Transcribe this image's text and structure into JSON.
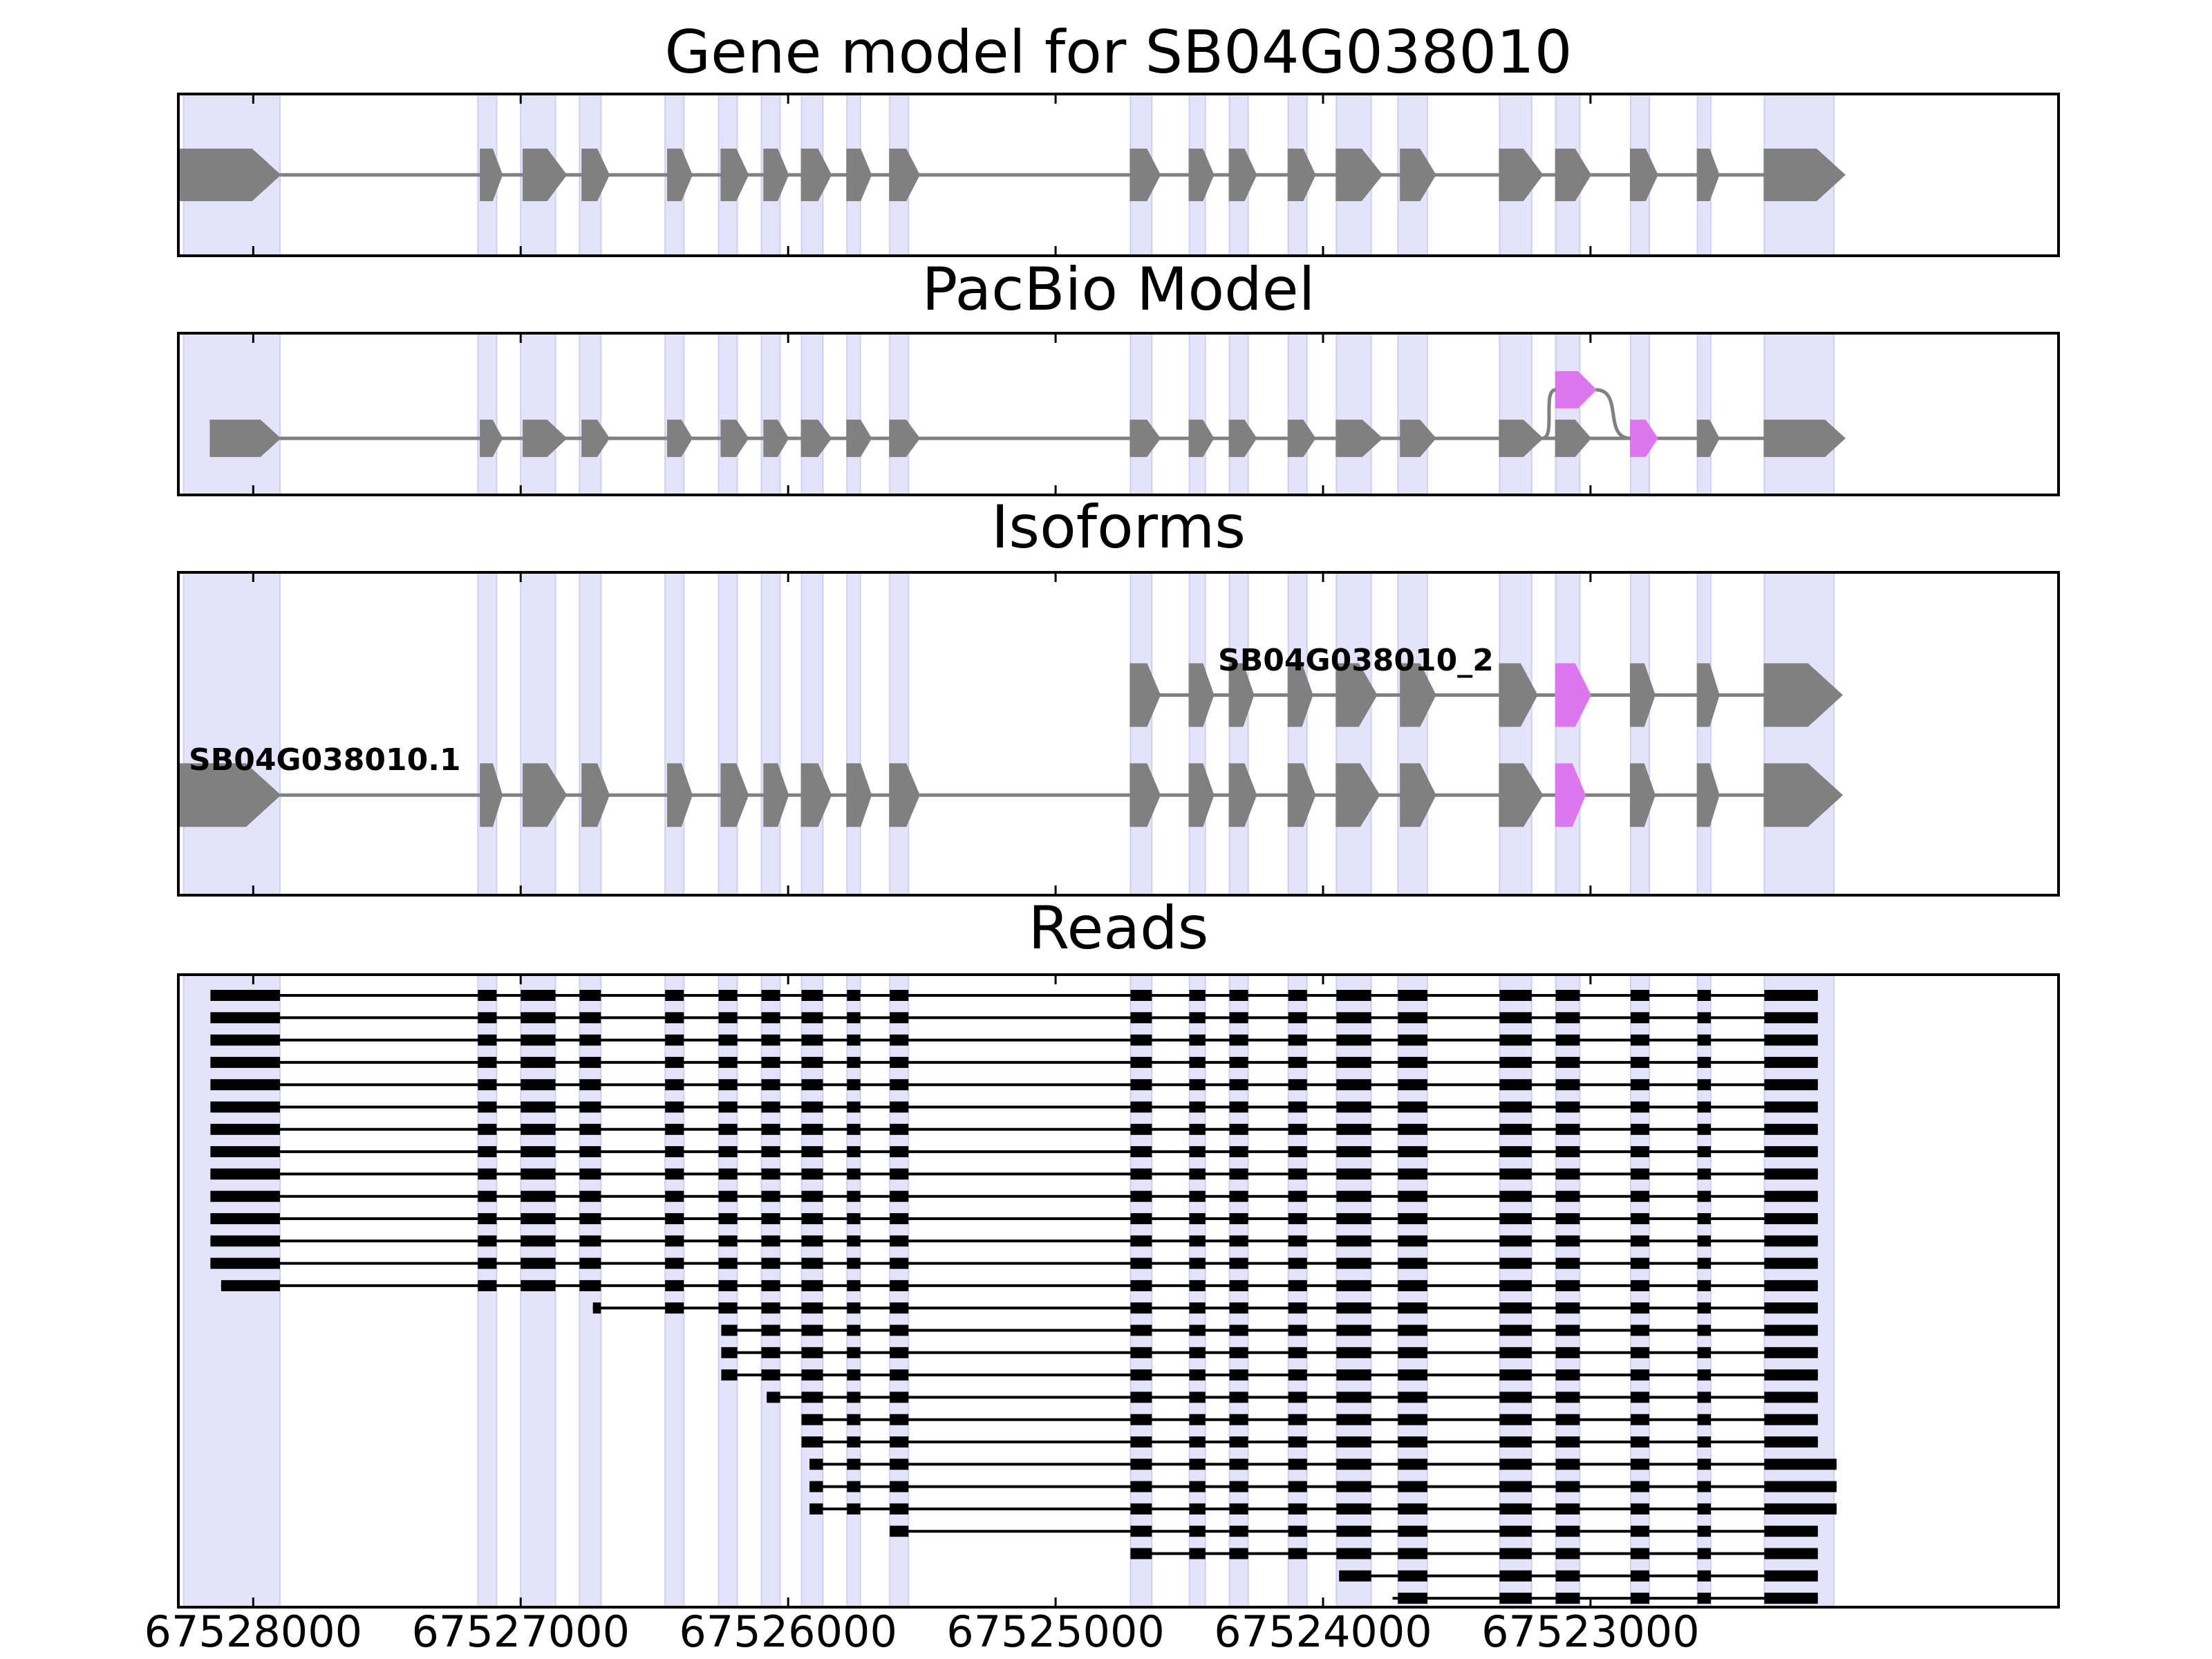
{
  "chart_data": {
    "type": "gene-track",
    "x_axis": {
      "reversed": true,
      "range": [
        67528280,
        67521250
      ],
      "ticks": [
        67528000,
        67527000,
        67526000,
        67525000,
        67524000,
        67523000
      ],
      "tick_labels": [
        "67528000",
        "67527000",
        "67526000",
        "67525000",
        "67524000",
        "67523000"
      ]
    },
    "exon_regions": [
      [
        67528260,
        67527900
      ],
      [
        67527160,
        67527090
      ],
      [
        67527000,
        67526870
      ],
      [
        67526780,
        67526700
      ],
      [
        67526460,
        67526390
      ],
      [
        67526260,
        67526190
      ],
      [
        67526100,
        67526030
      ],
      [
        67525950,
        67525870
      ],
      [
        67525780,
        67525730
      ],
      [
        67525620,
        67525550
      ],
      [
        67524720,
        67524640
      ],
      [
        67524500,
        67524440
      ],
      [
        67524350,
        67524280
      ],
      [
        67524130,
        67524060
      ],
      [
        67523950,
        67523820
      ],
      [
        67523720,
        67523610
      ],
      [
        67523340,
        67523220
      ],
      [
        67523130,
        67523040
      ],
      [
        67522850,
        67522780
      ],
      [
        67522600,
        67522550
      ],
      [
        67522350,
        67522090
      ]
    ],
    "panels": [
      {
        "title": "Gene model for SB04G038010",
        "tracks": [
          {
            "label": "",
            "row": 0.5,
            "exons": [
              [
                67528280,
                67527900
              ],
              [
                67527150,
                67527070
              ],
              [
                67526990,
                67526830
              ],
              [
                67526770,
                67526670
              ],
              [
                67526450,
                67526360
              ],
              [
                67526250,
                67526150
              ],
              [
                67526090,
                67526000
              ],
              [
                67525950,
                67525840
              ],
              [
                67525780,
                67525690
              ],
              [
                67525620,
                67525510
              ],
              [
                67524720,
                67524610
              ],
              [
                67524500,
                67524410
              ],
              [
                67524350,
                67524250
              ],
              [
                67524130,
                67524030
              ],
              [
                67523950,
                67523780
              ],
              [
                67523710,
                67523580
              ],
              [
                67523340,
                67523180
              ],
              [
                67523130,
                67523000
              ],
              [
                67522850,
                67522750
              ],
              [
                67522600,
                67522520
              ],
              [
                67522350,
                67522050
              ]
            ],
            "highlight": []
          }
        ]
      },
      {
        "title": "PacBio Model",
        "tracks": [
          {
            "label": "",
            "row": 0.35,
            "exons": [
              [
                67528160,
                67527900
              ],
              [
                67527150,
                67527070
              ],
              [
                67526990,
                67526830
              ],
              [
                67526770,
                67526670
              ],
              [
                67526450,
                67526360
              ],
              [
                67526250,
                67526150
              ],
              [
                67526090,
                67526000
              ],
              [
                67525950,
                67525840
              ],
              [
                67525780,
                67525690
              ],
              [
                67525620,
                67525510
              ],
              [
                67524720,
                67524610
              ],
              [
                67524500,
                67524410
              ],
              [
                67524350,
                67524250
              ],
              [
                67524130,
                67524030
              ],
              [
                67523950,
                67523780
              ],
              [
                67523710,
                67523580
              ],
              [
                67523340,
                67523180
              ],
              [
                67523130,
                67523000
              ],
              [
                67522850,
                67522750
              ],
              [
                67522600,
                67522520
              ],
              [
                67522350,
                67522050
              ]
            ],
            "highlight": [
              18
            ]
          },
          {
            "label": "",
            "row": 0.65,
            "exons": [
              [
                67523130,
                67522980
              ]
            ],
            "highlight": [
              0
            ],
            "arc_from": 67523180,
            "arc_to": 67522850
          }
        ]
      },
      {
        "title": "Isoforms",
        "tracks": [
          {
            "label": "SB04G038010_2",
            "row": 0.62,
            "exons": [
              [
                67524720,
                67524610
              ],
              [
                67524500,
                67524410
              ],
              [
                67524350,
                67524260
              ],
              [
                67524130,
                67524040
              ],
              [
                67523950,
                67523800
              ],
              [
                67523710,
                67523580
              ],
              [
                67523340,
                67523200
              ],
              [
                67523130,
                67523000
              ],
              [
                67522850,
                67522760
              ],
              [
                67522600,
                67522520
              ],
              [
                67522350,
                67522060
              ]
            ],
            "highlight": [
              7
            ]
          },
          {
            "label": "SB04G038010.1",
            "row": 0.31,
            "exons": [
              [
                67528280,
                67527900
              ],
              [
                67527150,
                67527070
              ],
              [
                67526990,
                67526830
              ],
              [
                67526770,
                67526670
              ],
              [
                67526450,
                67526360
              ],
              [
                67526250,
                67526150
              ],
              [
                67526090,
                67526000
              ],
              [
                67525950,
                67525840
              ],
              [
                67525780,
                67525690
              ],
              [
                67525620,
                67525510
              ],
              [
                67524720,
                67524610
              ],
              [
                67524500,
                67524410
              ],
              [
                67524350,
                67524250
              ],
              [
                67524130,
                67524030
              ],
              [
                67523950,
                67523790
              ],
              [
                67523710,
                67523580
              ],
              [
                67523340,
                67523180
              ],
              [
                67523130,
                67523020
              ],
              [
                67522850,
                67522760
              ],
              [
                67522600,
                67522520
              ],
              [
                67522350,
                67522060
              ]
            ],
            "highlight": [
              17
            ]
          }
        ]
      },
      {
        "title": "Reads",
        "read_count": 28,
        "read_groups": [
          {
            "count": 13,
            "start": 67528160,
            "end": 67522150
          },
          {
            "count": 1,
            "start": 67528120,
            "end": 67522150
          },
          {
            "count": 1,
            "start": 67526730,
            "end": 67522150
          },
          {
            "count": 3,
            "start": 67526250,
            "end": 67522150
          },
          {
            "count": 1,
            "start": 67526080,
            "end": 67522150
          },
          {
            "count": 2,
            "start": 67525950,
            "end": 67522150
          },
          {
            "count": 3,
            "start": 67525920,
            "end": 67522080
          },
          {
            "count": 1,
            "start": 67525620,
            "end": 67522150
          },
          {
            "count": 1,
            "start": 67524720,
            "end": 67522150
          },
          {
            "count": 1,
            "start": 67523940,
            "end": 67522150
          },
          {
            "count": 1,
            "start": 67523740,
            "end": 67522150
          }
        ]
      }
    ]
  }
}
